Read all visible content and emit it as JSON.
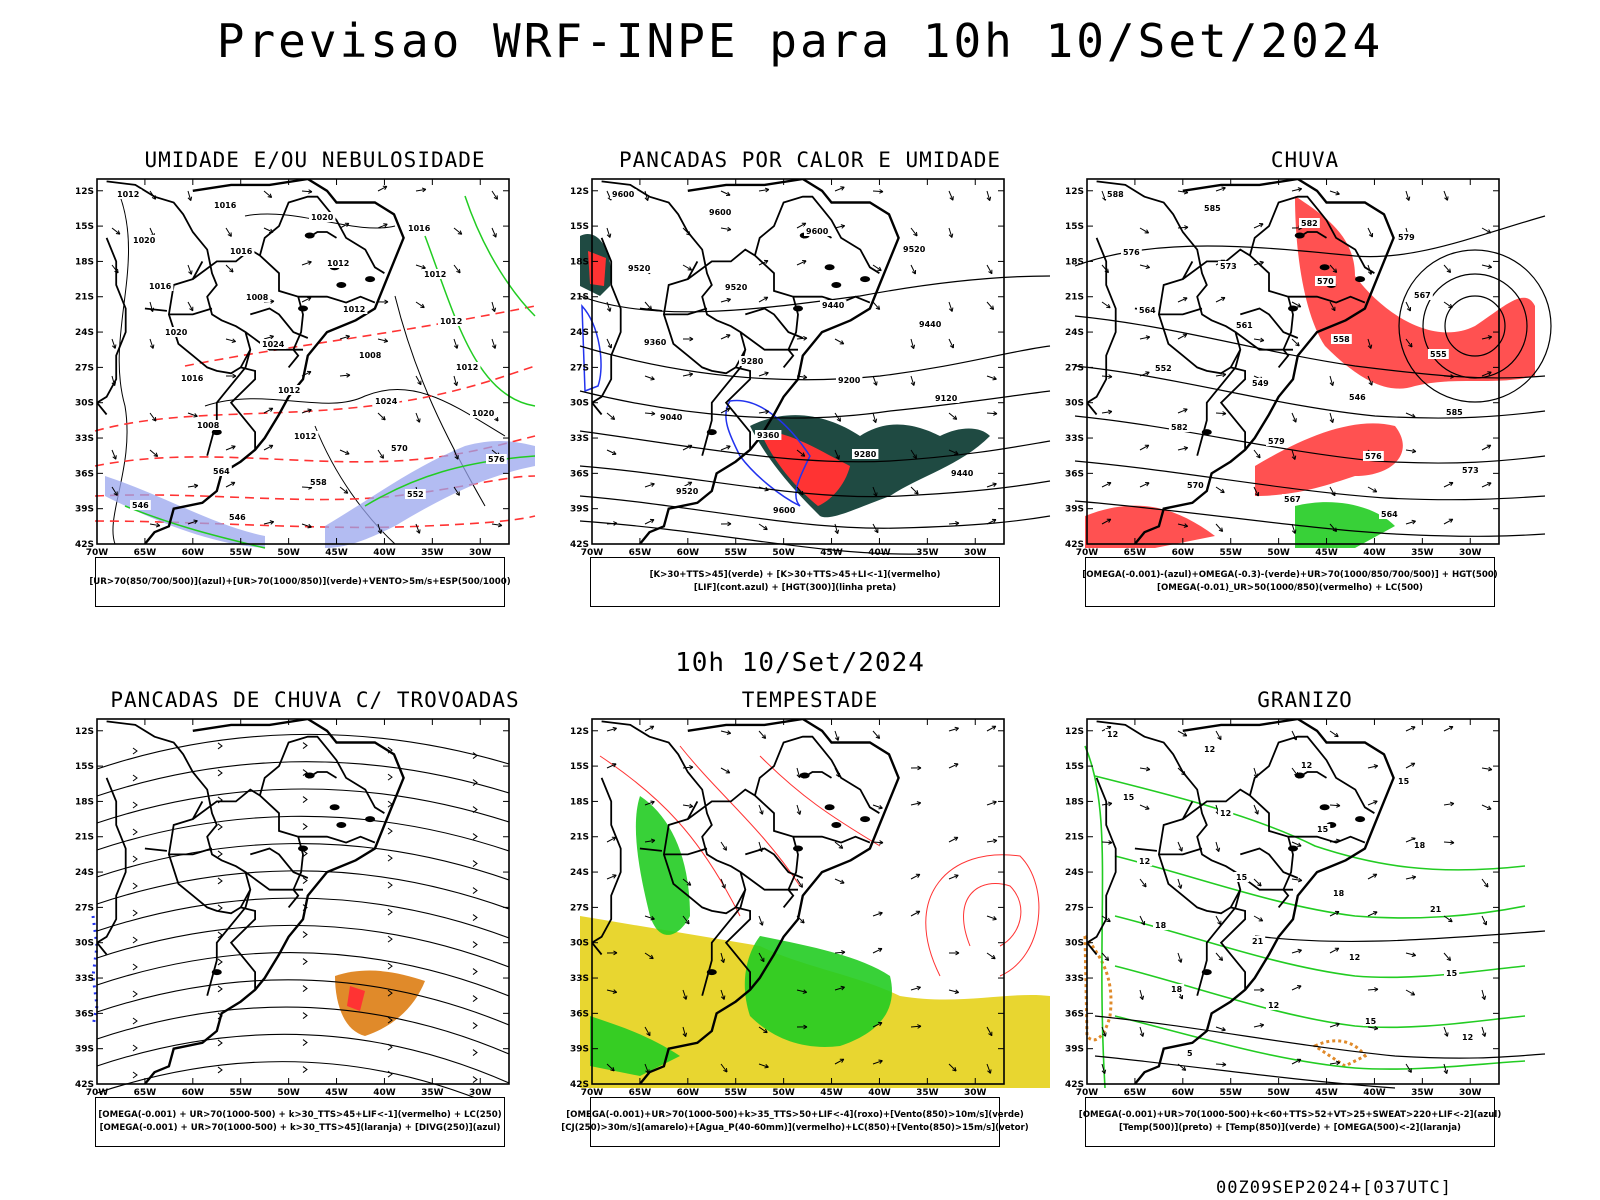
{
  "page_title": "Previsao WRF-INPE  para 10h 10/Set/2024",
  "middle_title": "10h 10/Set/2024",
  "footer_code": "00Z09SEP2024+[037UTC]",
  "axes": {
    "lat_ticks": [
      "12S",
      "15S",
      "18S",
      "21S",
      "24S",
      "27S",
      "30S",
      "33S",
      "36S",
      "39S",
      "42S"
    ],
    "lon_ticks": [
      "70W",
      "65W",
      "60W",
      "55W",
      "50W",
      "45W",
      "40W",
      "35W",
      "30W"
    ]
  },
  "colors": {
    "blue": "#2233ee",
    "green": "#22cc22",
    "red": "#ff3333",
    "dark_teal": "#1f4a42",
    "yellow": "#e8d630",
    "orange": "#e08a2a",
    "lavender": "#9aa6ee"
  },
  "panels": [
    {
      "title": "UMIDADE E/OU NEBULOSIDADE",
      "legend": [
        "[UR>70(850/700/500)](azul)+[UR>70(1000/850)](verde)+VENTO>5m/s+ESP(500/1000)"
      ],
      "contour_labels": [
        "1012",
        "1016",
        "1020",
        "1016",
        "1020",
        "1016",
        "1012",
        "1012",
        "1016",
        "1008",
        "1012",
        "1012",
        "1020",
        "1024",
        "1008",
        "1012",
        "1016",
        "1012",
        "1024",
        "1020",
        "1008",
        "1012",
        "570",
        "576",
        "564",
        "558",
        "552",
        "546",
        "546"
      ]
    },
    {
      "title": "PANCADAS POR CALOR E UMIDADE",
      "legend": [
        "[K>30+TTS>45](verde) + [K>30+TTS>45+LI<-1](vermelho)",
        "[LIF](cont.azul) + [HGT(300)](linha preta)"
      ],
      "contour_labels": [
        "9600",
        "9600",
        "9600",
        "9520",
        "9520",
        "9520",
        "9440",
        "9440",
        "9360",
        "9280",
        "9200",
        "9120",
        "9040",
        "9360",
        "9280",
        "9440",
        "9520",
        "9600"
      ]
    },
    {
      "title": "CHUVA",
      "legend": [
        "[OMEGA(-0.001)-(azul)+OMEGA(-0.3)-(verde)+UR>70(1000/850/700/500)] + HGT(500)",
        "[OMEGA(-0.01)_UR>50(1000/850)(vermelho) + LC(500)"
      ],
      "contour_labels": [
        "588",
        "585",
        "582",
        "579",
        "576",
        "573",
        "570",
        "567",
        "564",
        "561",
        "558",
        "555",
        "552",
        "549",
        "546",
        "585",
        "582",
        "579",
        "576",
        "573",
        "570",
        "567",
        "564"
      ]
    },
    {
      "title": "PANCADAS DE CHUVA C/ TROVOADAS",
      "legend": [
        "[OMEGA(-0.001) + UR>70(1000-500) + k>30_TTS>45+LIF<-1](vermelho) + LC(250)",
        "[OMEGA(-0.001) + UR>70(1000-500) + k>30_TTS>45](laranja) + [DIVG(250)](azul)"
      ],
      "contour_labels": []
    },
    {
      "title": "TEMPESTADE",
      "legend": [
        "[OMEGA(-0.001)+UR>70(1000-500)+k>35_TTS>50+LIF<-4](roxo)+[Vento(850)>10m/s](verde)",
        "[CJ(250)>30m/s](amarelo)+[Agua_P(40-60mm)](vermelho)+LC(850)+[Vento(850)>15m/s](vetor)"
      ],
      "contour_labels": []
    },
    {
      "title": "GRANIZO",
      "legend": [
        "[OMEGA(-0.001)+UR>70(1000-500)+k<60+TTS>52+VT>25+SWEAT>220+LIF<-2](azul)",
        "[Temp(500)](preto) + [Temp(850)](verde) + [OMEGA(500)<-2](laranja)"
      ],
      "contour_labels": [
        "12",
        "12",
        "12",
        "15",
        "15",
        "12",
        "15",
        "18",
        "12",
        "15",
        "18",
        "21",
        "18",
        "21",
        "12",
        "15",
        "18",
        "12",
        "15",
        "12",
        "5"
      ]
    }
  ]
}
